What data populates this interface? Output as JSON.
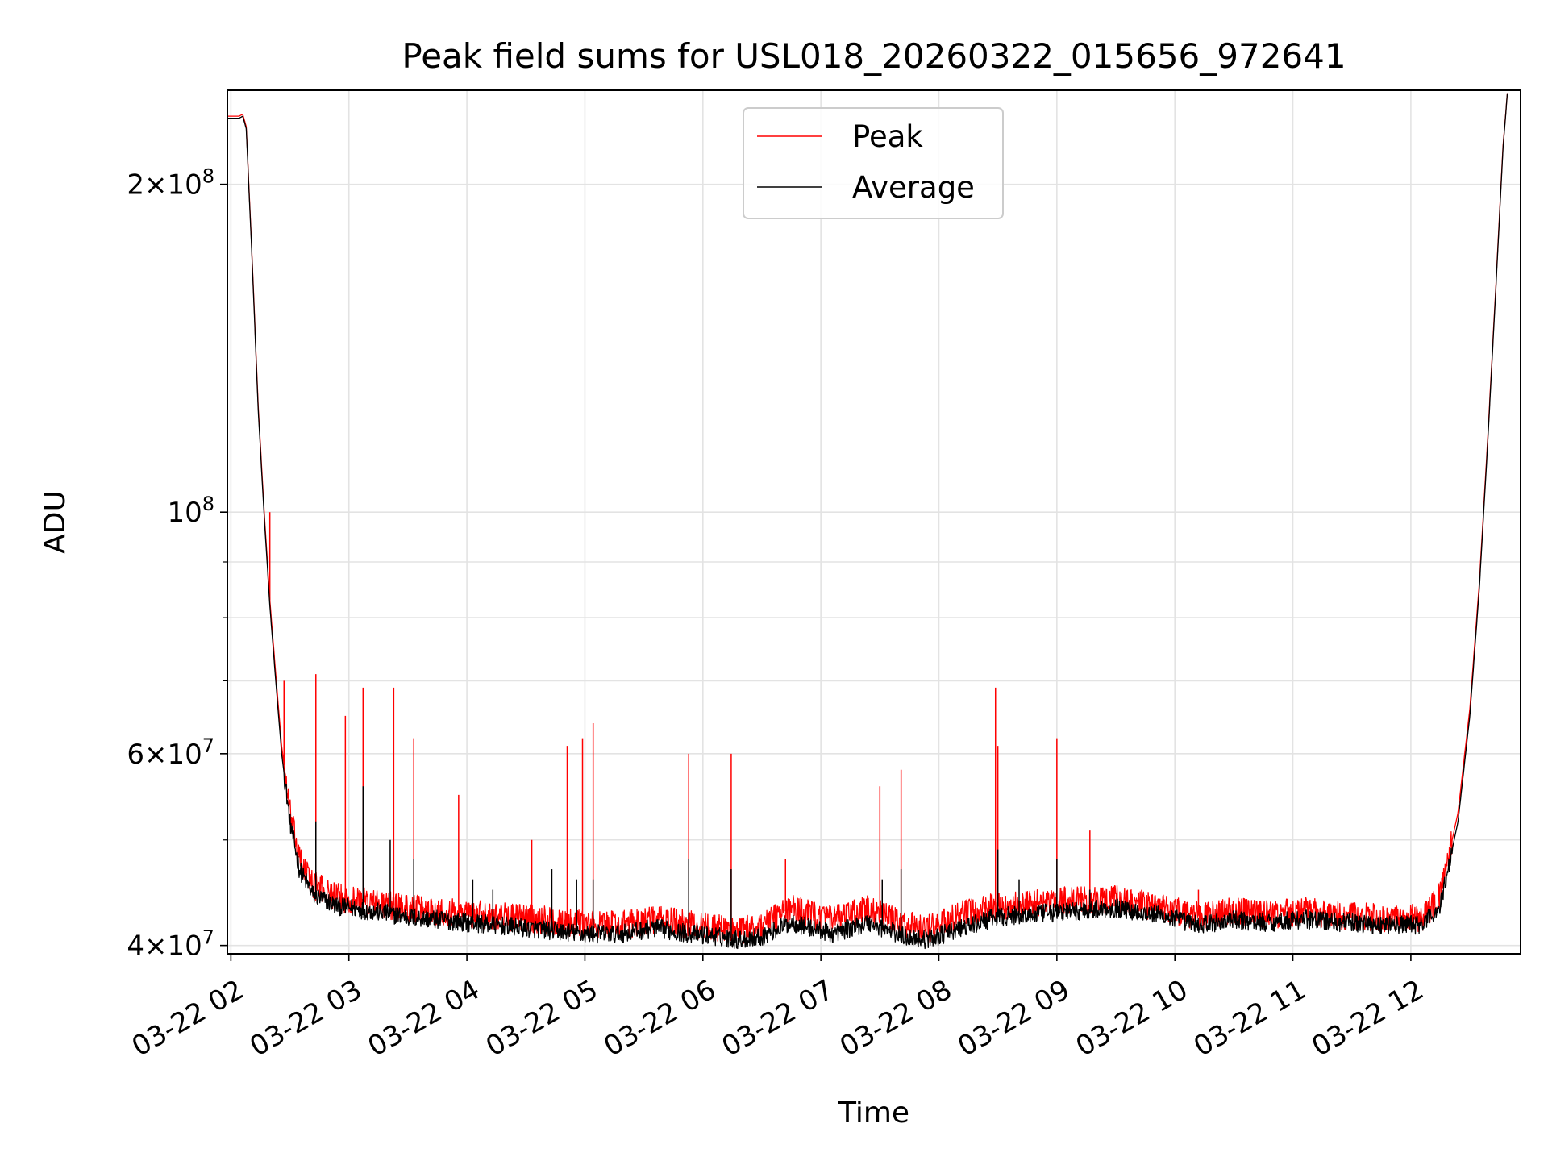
{
  "chart_data": {
    "type": "line",
    "title": "Peak field sums for USL018_20260322_015656_972641",
    "xlabel": "Time",
    "ylabel": "ADU",
    "yscale": "log",
    "grid": true,
    "legend_position": "upper center",
    "x_unit": "hours since 03-22 00:00",
    "xlim": [
      1.97,
      12.93
    ],
    "ylim": [
      39300000,
      244000000
    ],
    "x_ticks": [
      {
        "value": 2,
        "label": "03-22 02"
      },
      {
        "value": 3,
        "label": "03-22 03"
      },
      {
        "value": 4,
        "label": "03-22 04"
      },
      {
        "value": 5,
        "label": "03-22 05"
      },
      {
        "value": 6,
        "label": "03-22 06"
      },
      {
        "value": 7,
        "label": "03-22 07"
      },
      {
        "value": 8,
        "label": "03-22 08"
      },
      {
        "value": 9,
        "label": "03-22 09"
      },
      {
        "value": 10,
        "label": "03-22 10"
      },
      {
        "value": 11,
        "label": "03-22 11"
      },
      {
        "value": 12,
        "label": "03-22 12"
      }
    ],
    "y_ticks": [
      {
        "value": 40000000,
        "mantissa": "4",
        "exponent": "7"
      },
      {
        "value": 60000000,
        "mantissa": "6",
        "exponent": "7"
      },
      {
        "value": 100000000,
        "mantissa": "",
        "exponent": "8"
      },
      {
        "value": 200000000,
        "mantissa": "2",
        "exponent": "8"
      }
    ],
    "y_minor_ticks": [
      50000000,
      70000000,
      80000000,
      90000000
    ],
    "series": [
      {
        "name": "Average",
        "color": "#000000",
        "points": [
          [
            1.97,
            230000000
          ],
          [
            2.07,
            230000000
          ],
          [
            2.1,
            231000000
          ],
          [
            2.13,
            225000000
          ],
          [
            2.18,
            170000000
          ],
          [
            2.23,
            125000000
          ],
          [
            2.28,
            100000000
          ],
          [
            2.33,
            82000000
          ],
          [
            2.38,
            70000000
          ],
          [
            2.43,
            60000000
          ],
          [
            2.5,
            52000000
          ],
          [
            2.58,
            47000000
          ],
          [
            2.7,
            44500000
          ],
          [
            2.9,
            43500000
          ],
          [
            3.2,
            43000000
          ],
          [
            3.5,
            42500000
          ],
          [
            4.0,
            42000000
          ],
          [
            4.5,
            41500000
          ],
          [
            5.0,
            41000000
          ],
          [
            5.3,
            41000000
          ],
          [
            5.6,
            41500000
          ],
          [
            5.9,
            41000000
          ],
          [
            6.1,
            40800000
          ],
          [
            6.3,
            40500000
          ],
          [
            6.5,
            40800000
          ],
          [
            6.75,
            42000000
          ],
          [
            7.1,
            41000000
          ],
          [
            7.4,
            42000000
          ],
          [
            7.7,
            40800000
          ],
          [
            7.9,
            40500000
          ],
          [
            8.2,
            41500000
          ],
          [
            8.5,
            42500000
          ],
          [
            8.8,
            42700000
          ],
          [
            9.1,
            43000000
          ],
          [
            9.5,
            43300000
          ],
          [
            9.9,
            42600000
          ],
          [
            10.2,
            41800000
          ],
          [
            10.5,
            42200000
          ],
          [
            10.8,
            42000000
          ],
          [
            11.1,
            42300000
          ],
          [
            11.4,
            42000000
          ],
          [
            11.8,
            41800000
          ],
          [
            12.1,
            41800000
          ],
          [
            12.25,
            43500000
          ],
          [
            12.4,
            52000000
          ],
          [
            12.5,
            65000000
          ],
          [
            12.58,
            85000000
          ],
          [
            12.65,
            115000000
          ],
          [
            12.72,
            160000000
          ],
          [
            12.78,
            215000000
          ],
          [
            12.82,
            244000000
          ]
        ],
        "noise_fraction": 0.02,
        "spikes": [
          [
            2.72,
            52000000
          ],
          [
            3.12,
            56000000
          ],
          [
            3.35,
            50000000
          ],
          [
            3.55,
            48000000
          ],
          [
            4.05,
            46000000
          ],
          [
            4.22,
            45000000
          ],
          [
            4.72,
            47000000
          ],
          [
            4.93,
            46000000
          ],
          [
            5.07,
            46000000
          ],
          [
            5.88,
            48000000
          ],
          [
            6.24,
            47000000
          ],
          [
            7.52,
            46000000
          ],
          [
            7.68,
            47000000
          ],
          [
            8.5,
            49000000
          ],
          [
            8.68,
            46000000
          ],
          [
            9.0,
            48000000
          ],
          [
            9.28,
            45000000
          ]
        ]
      },
      {
        "name": "Peak",
        "color": "#ff0000",
        "points": [
          [
            1.97,
            231000000
          ],
          [
            2.07,
            231000000
          ],
          [
            2.1,
            232000000
          ],
          [
            2.13,
            226000000
          ],
          [
            2.18,
            171000000
          ],
          [
            2.23,
            126000000
          ],
          [
            2.28,
            101000000
          ],
          [
            2.33,
            83000000
          ],
          [
            2.38,
            71000000
          ],
          [
            2.43,
            61000000
          ],
          [
            2.5,
            53000000
          ],
          [
            2.58,
            48000000
          ],
          [
            2.7,
            45500000
          ],
          [
            2.9,
            44300000
          ],
          [
            3.2,
            43800000
          ],
          [
            3.5,
            43300000
          ],
          [
            4.0,
            42800000
          ],
          [
            4.5,
            42400000
          ],
          [
            5.0,
            41800000
          ],
          [
            5.3,
            41800000
          ],
          [
            5.6,
            42300000
          ],
          [
            5.9,
            41800000
          ],
          [
            6.1,
            41600000
          ],
          [
            6.3,
            41200000
          ],
          [
            6.5,
            41800000
          ],
          [
            6.75,
            43300000
          ],
          [
            7.1,
            42200000
          ],
          [
            7.4,
            43200000
          ],
          [
            7.7,
            41800000
          ],
          [
            7.9,
            41400000
          ],
          [
            8.2,
            42700000
          ],
          [
            8.5,
            43500000
          ],
          [
            8.8,
            43700000
          ],
          [
            9.1,
            44000000
          ],
          [
            9.5,
            44100000
          ],
          [
            9.9,
            43300000
          ],
          [
            10.2,
            42600000
          ],
          [
            10.5,
            43000000
          ],
          [
            10.8,
            42700000
          ],
          [
            11.1,
            43000000
          ],
          [
            11.4,
            42600000
          ],
          [
            11.8,
            42400000
          ],
          [
            12.1,
            42400000
          ],
          [
            12.25,
            44500000
          ],
          [
            12.4,
            53000000
          ],
          [
            12.5,
            66000000
          ],
          [
            12.58,
            86000000
          ],
          [
            12.65,
            116000000
          ],
          [
            12.72,
            161000000
          ],
          [
            12.78,
            216000000
          ],
          [
            12.82,
            244000000
          ]
        ],
        "noise_fraction": 0.03,
        "spikes": [
          [
            2.33,
            100000000
          ],
          [
            2.45,
            70000000
          ],
          [
            2.72,
            71000000
          ],
          [
            2.97,
            65000000
          ],
          [
            3.12,
            69000000
          ],
          [
            3.38,
            69000000
          ],
          [
            3.55,
            62000000
          ],
          [
            3.93,
            55000000
          ],
          [
            4.55,
            50000000
          ],
          [
            4.85,
            61000000
          ],
          [
            4.98,
            62000000
          ],
          [
            5.07,
            64000000
          ],
          [
            5.88,
            60000000
          ],
          [
            6.24,
            60000000
          ],
          [
            6.7,
            48000000
          ],
          [
            7.5,
            56000000
          ],
          [
            7.68,
            58000000
          ],
          [
            8.48,
            69000000
          ],
          [
            8.5,
            61000000
          ],
          [
            9.0,
            62000000
          ],
          [
            9.28,
            51000000
          ],
          [
            10.2,
            45000000
          ]
        ]
      }
    ]
  }
}
